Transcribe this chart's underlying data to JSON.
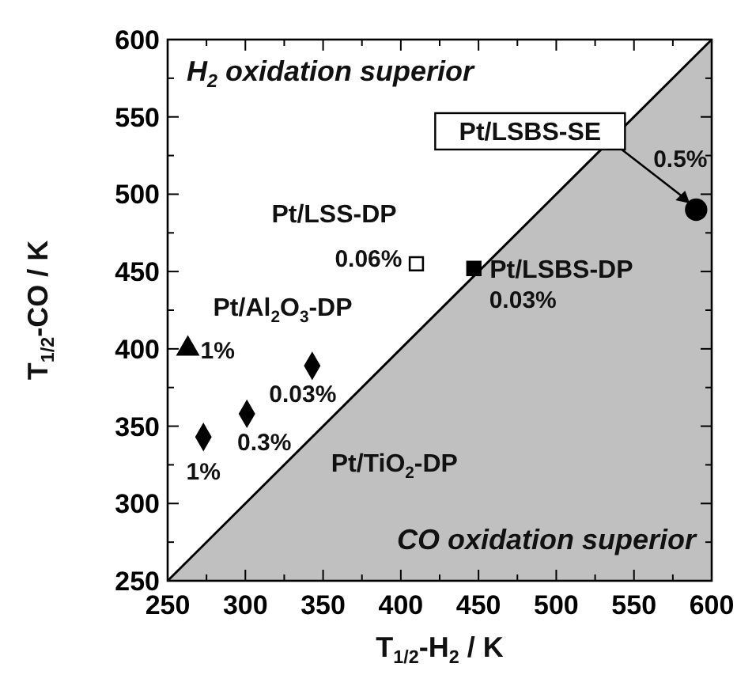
{
  "chart_data": {
    "type": "scatter",
    "xlabel": "T$_{1/2}$-H$_{2}$ / K",
    "ylabel": "T$_{1/2}$-CO / K",
    "xlim": [
      250,
      600
    ],
    "ylim": [
      250,
      600
    ],
    "xticks": [
      250,
      {
        "value": 275,
        "label": null
      },
      300,
      {
        "value": 325,
        "label": null
      },
      350,
      {
        "value": 375,
        "label": null
      },
      400,
      {
        "value": 425,
        "label": null
      },
      450,
      {
        "value": 475,
        "label": null
      },
      500,
      {
        "value": 525,
        "label": null
      },
      550,
      {
        "value": 575,
        "label": null
      },
      600
    ],
    "yticks": [
      250,
      {
        "value": 275,
        "label": null
      },
      300,
      {
        "value": 325,
        "label": null
      },
      350,
      {
        "value": 375,
        "label": null
      },
      400,
      {
        "value": 425,
        "label": null
      },
      450,
      {
        "value": 475,
        "label": null
      },
      500,
      {
        "value": 525,
        "label": null
      },
      550,
      {
        "value": 575,
        "label": null
      },
      600
    ],
    "grid": false,
    "annotations": [
      "H$_{2}$ oxidation superior",
      "CO oxidation superior",
      {
        "text": "0.5%",
        "x": 590,
        "y": 490
      },
      {
        "text": "0.06%",
        "x": 410,
        "y": 455
      },
      {
        "text": "0.03%",
        "x": 447,
        "y": 452
      },
      {
        "text": "1%",
        "x": 263,
        "y": 400
      },
      {
        "text": "0.03%",
        "x": 343,
        "y": 389
      },
      {
        "text": "0.3%",
        "x": 301,
        "y": 358
      },
      {
        "text": "1%",
        "x": 273,
        "y": 343
      }
    ],
    "series": [
      {
        "type": "area",
        "color": "#c0c0c0",
        "x": [
          250,
          600
        ],
        "values": [
          250,
          600
        ]
      },
      {
        "name": "Pt/LSBS-SE",
        "marker": "circle",
        "color": "#000000",
        "x": [
          590
        ],
        "values": [
          490
        ]
      },
      {
        "name": "Pt/LSS-DP",
        "marker": "square",
        "color": "#ffffff",
        "x": [
          410
        ],
        "values": [
          455
        ]
      },
      {
        "name": "Pt/LSBS-DP",
        "marker": "square",
        "color": "#000000",
        "x": [
          447
        ],
        "values": [
          452
        ]
      },
      {
        "name": "Pt/Al$_{2}$O$_{3}$-DP",
        "marker": "triangle",
        "color": "#000000",
        "x": [
          263
        ],
        "values": [
          400
        ]
      },
      {
        "name": "Pt/TiO$_{2}$-DP",
        "marker": "diamond",
        "color": "#000000",
        "x": [
          343,
          301,
          273
        ],
        "values": [
          389,
          358,
          343
        ]
      }
    ]
  }
}
